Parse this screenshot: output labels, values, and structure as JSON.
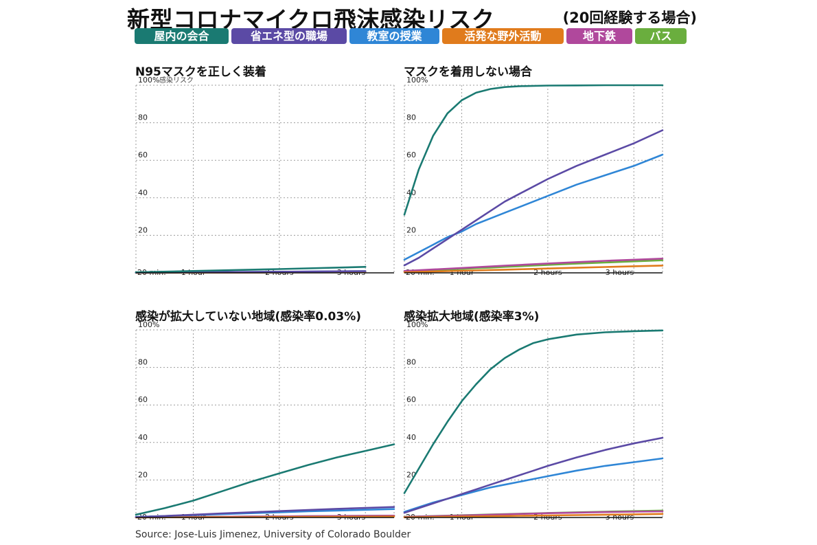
{
  "header": {
    "title": "新型コロナマイクロ飛沫感染リスク",
    "subtitle": "(20回経験する場合)"
  },
  "legend": [
    {
      "label": "屋内の会合",
      "color": "#1a7a72"
    },
    {
      "label": "省エネ型の職場",
      "color": "#5b4aa5"
    },
    {
      "label": "教室の授業",
      "color": "#2f86d6"
    },
    {
      "label": "活発な野外活動",
      "color": "#e07b1c"
    },
    {
      "label": "地下鉄",
      "color": "#b0489c"
    },
    {
      "label": "バス",
      "color": "#6aae3e"
    }
  ],
  "source": "Source: Jose-Luis Jimenez, University of Colorado Boulder",
  "chart_data": [
    {
      "type": "line",
      "title": "N95マスクを正しく装着",
      "ylabel": "感染リスク",
      "ylim": [
        0,
        100
      ],
      "yticks": [
        "100%",
        "80",
        "60",
        "40",
        "20"
      ],
      "xlim": [
        20,
        200
      ],
      "xtick_labels": [
        "20 min.",
        "1 hour",
        "2 hours",
        "3 hours"
      ],
      "x": [
        20,
        60,
        120,
        180
      ],
      "grid": true,
      "series": [
        {
          "name": "屋内の会合",
          "color": "#1a7a72",
          "values": [
            0.3,
            1.0,
            2.0,
            3.2
          ]
        },
        {
          "name": "省エネ型の職場",
          "color": "#5b4aa5",
          "values": [
            0.1,
            0.3,
            0.6,
            0.9
          ]
        },
        {
          "name": "教室の授業",
          "color": "#2f86d6",
          "values": [
            0.1,
            0.3,
            0.6,
            0.9
          ]
        },
        {
          "name": "活発な野外活動",
          "color": "#e07b1c",
          "values": [
            0.0,
            0.1,
            0.2,
            0.3
          ]
        },
        {
          "name": "地下鉄",
          "color": "#b0489c",
          "values": [
            0.1,
            0.2,
            0.4,
            0.5
          ]
        },
        {
          "name": "バス",
          "color": "#6aae3e",
          "values": [
            0.1,
            0.2,
            0.4,
            0.6
          ]
        }
      ]
    },
    {
      "type": "line",
      "title": "マスクを着用しない場合",
      "ylabel": "",
      "ylim": [
        0,
        100
      ],
      "yticks": [
        "100%",
        "80",
        "60",
        "40",
        "20"
      ],
      "xlim": [
        20,
        200
      ],
      "xtick_labels": [
        "20 min.",
        "1 hour",
        "2 hours",
        "3 hours"
      ],
      "x": [
        20,
        30,
        40,
        50,
        60,
        70,
        80,
        90,
        100,
        120,
        140,
        160,
        180,
        200
      ],
      "grid": true,
      "series": [
        {
          "name": "屋内の会合",
          "color": "#1a7a72",
          "values": [
            31,
            55,
            73,
            85,
            92,
            96,
            98,
            99,
            99.5,
            99.8,
            99.9,
            100,
            100,
            100
          ]
        },
        {
          "name": "省エネ型の職場",
          "color": "#5b4aa5",
          "values": [
            4,
            8,
            13,
            18,
            23,
            28,
            33,
            38,
            42,
            50,
            57,
            63,
            69,
            76
          ]
        },
        {
          "name": "教室の授業",
          "color": "#2f86d6",
          "values": [
            7,
            11,
            15,
            19,
            22,
            26,
            29,
            32,
            35,
            41,
            47,
            52,
            57,
            63
          ]
        },
        {
          "name": "活発な野外活動",
          "color": "#e07b1c",
          "values": [
            0.3,
            0.5,
            0.7,
            0.9,
            1.1,
            1.3,
            1.5,
            1.7,
            1.9,
            2.3,
            2.7,
            3.1,
            3.5,
            3.9
          ]
        },
        {
          "name": "地下鉄",
          "color": "#b0489c",
          "values": [
            1,
            1.4,
            1.8,
            2.2,
            2.6,
            3.0,
            3.4,
            3.8,
            4.2,
            5.0,
            5.7,
            6.4,
            7.0,
            7.6
          ]
        },
        {
          "name": "バス",
          "color": "#6aae3e",
          "values": [
            0.8,
            1.1,
            1.4,
            1.8,
            2.1,
            2.5,
            2.8,
            3.2,
            3.5,
            4.2,
            4.9,
            5.5,
            6.1,
            6.7
          ]
        }
      ]
    },
    {
      "type": "line",
      "title": "感染が拡大していない地域(感染率0.03%)",
      "ylabel": "",
      "ylim": [
        0,
        100
      ],
      "yticks": [
        "100%",
        "80",
        "60",
        "40",
        "20"
      ],
      "xlim": [
        20,
        200
      ],
      "xtick_labels": [
        "20 min.",
        "1 hour",
        "2 hours",
        "3 hours"
      ],
      "x": [
        20,
        40,
        60,
        80,
        100,
        120,
        140,
        160,
        180,
        200
      ],
      "grid": true,
      "series": [
        {
          "name": "屋内の会合",
          "color": "#1a7a72",
          "values": [
            1.5,
            5,
            9,
            14,
            19,
            23.5,
            28,
            32,
            35.5,
            39
          ]
        },
        {
          "name": "省エネ型の職場",
          "color": "#5b4aa5",
          "values": [
            0.2,
            0.8,
            1.5,
            2.2,
            2.8,
            3.4,
            4.0,
            4.6,
            5.1,
            5.6
          ]
        },
        {
          "name": "教室の授業",
          "color": "#2f86d6",
          "values": [
            0.3,
            0.8,
            1.3,
            1.8,
            2.3,
            2.8,
            3.3,
            3.7,
            4.1,
            4.5
          ]
        },
        {
          "name": "活発な野外活動",
          "color": "#e07b1c",
          "values": [
            0.0,
            0.1,
            0.1,
            0.2,
            0.2,
            0.3,
            0.3,
            0.4,
            0.4,
            0.5
          ]
        },
        {
          "name": "地下鉄",
          "color": "#b0489c",
          "values": [
            0.1,
            0.2,
            0.3,
            0.4,
            0.5,
            0.6,
            0.7,
            0.8,
            0.9,
            1.0
          ]
        },
        {
          "name": "バス",
          "color": "#6aae3e",
          "values": [
            0.1,
            0.2,
            0.3,
            0.4,
            0.5,
            0.6,
            0.7,
            0.8,
            0.9,
            1.0
          ]
        }
      ]
    },
    {
      "type": "line",
      "title": "感染拡大地域(感染率3%)",
      "ylabel": "",
      "ylim": [
        0,
        100
      ],
      "yticks": [
        "100%",
        "80",
        "60",
        "40",
        "20"
      ],
      "xlim": [
        20,
        200
      ],
      "xtick_labels": [
        "20 min.",
        "1 hour",
        "2 hours",
        "3 hours"
      ],
      "x": [
        20,
        30,
        40,
        50,
        60,
        70,
        80,
        90,
        100,
        110,
        120,
        140,
        160,
        180,
        200
      ],
      "grid": true,
      "series": [
        {
          "name": "屋内の会合",
          "color": "#1a7a72",
          "values": [
            13,
            26,
            39,
            51,
            62,
            71,
            79,
            85,
            89.5,
            93,
            95,
            97.5,
            98.7,
            99.3,
            99.7
          ]
        },
        {
          "name": "省エネ型の職場",
          "color": "#5b4aa5",
          "values": [
            2.5,
            5,
            7.5,
            10,
            12.5,
            15,
            17.5,
            20,
            22.5,
            25,
            27.5,
            32,
            36,
            39.5,
            42.5
          ]
        },
        {
          "name": "教室の授業",
          "color": "#2f86d6",
          "values": [
            3,
            5.5,
            8,
            10,
            12,
            14,
            16,
            17.5,
            19,
            20.5,
            22,
            25,
            27.5,
            29.5,
            31.5
          ]
        },
        {
          "name": "活発な野外活動",
          "color": "#e07b1c",
          "values": [
            0.1,
            0.2,
            0.3,
            0.4,
            0.5,
            0.6,
            0.7,
            0.8,
            0.9,
            1.0,
            1.1,
            1.3,
            1.5,
            1.7,
            1.9
          ]
        },
        {
          "name": "地下鉄",
          "color": "#b0489c",
          "values": [
            0.3,
            0.5,
            0.7,
            0.9,
            1.1,
            1.3,
            1.5,
            1.7,
            1.9,
            2.1,
            2.3,
            2.6,
            2.9,
            3.1,
            3.3
          ]
        },
        {
          "name": "バス",
          "color": "#6aae3e",
          "values": [
            0.4,
            0.6,
            0.8,
            1.0,
            1.2,
            1.4,
            1.6,
            1.8,
            2.0,
            2.2,
            2.4,
            2.8,
            3.1,
            3.4,
            3.7
          ]
        }
      ]
    }
  ]
}
